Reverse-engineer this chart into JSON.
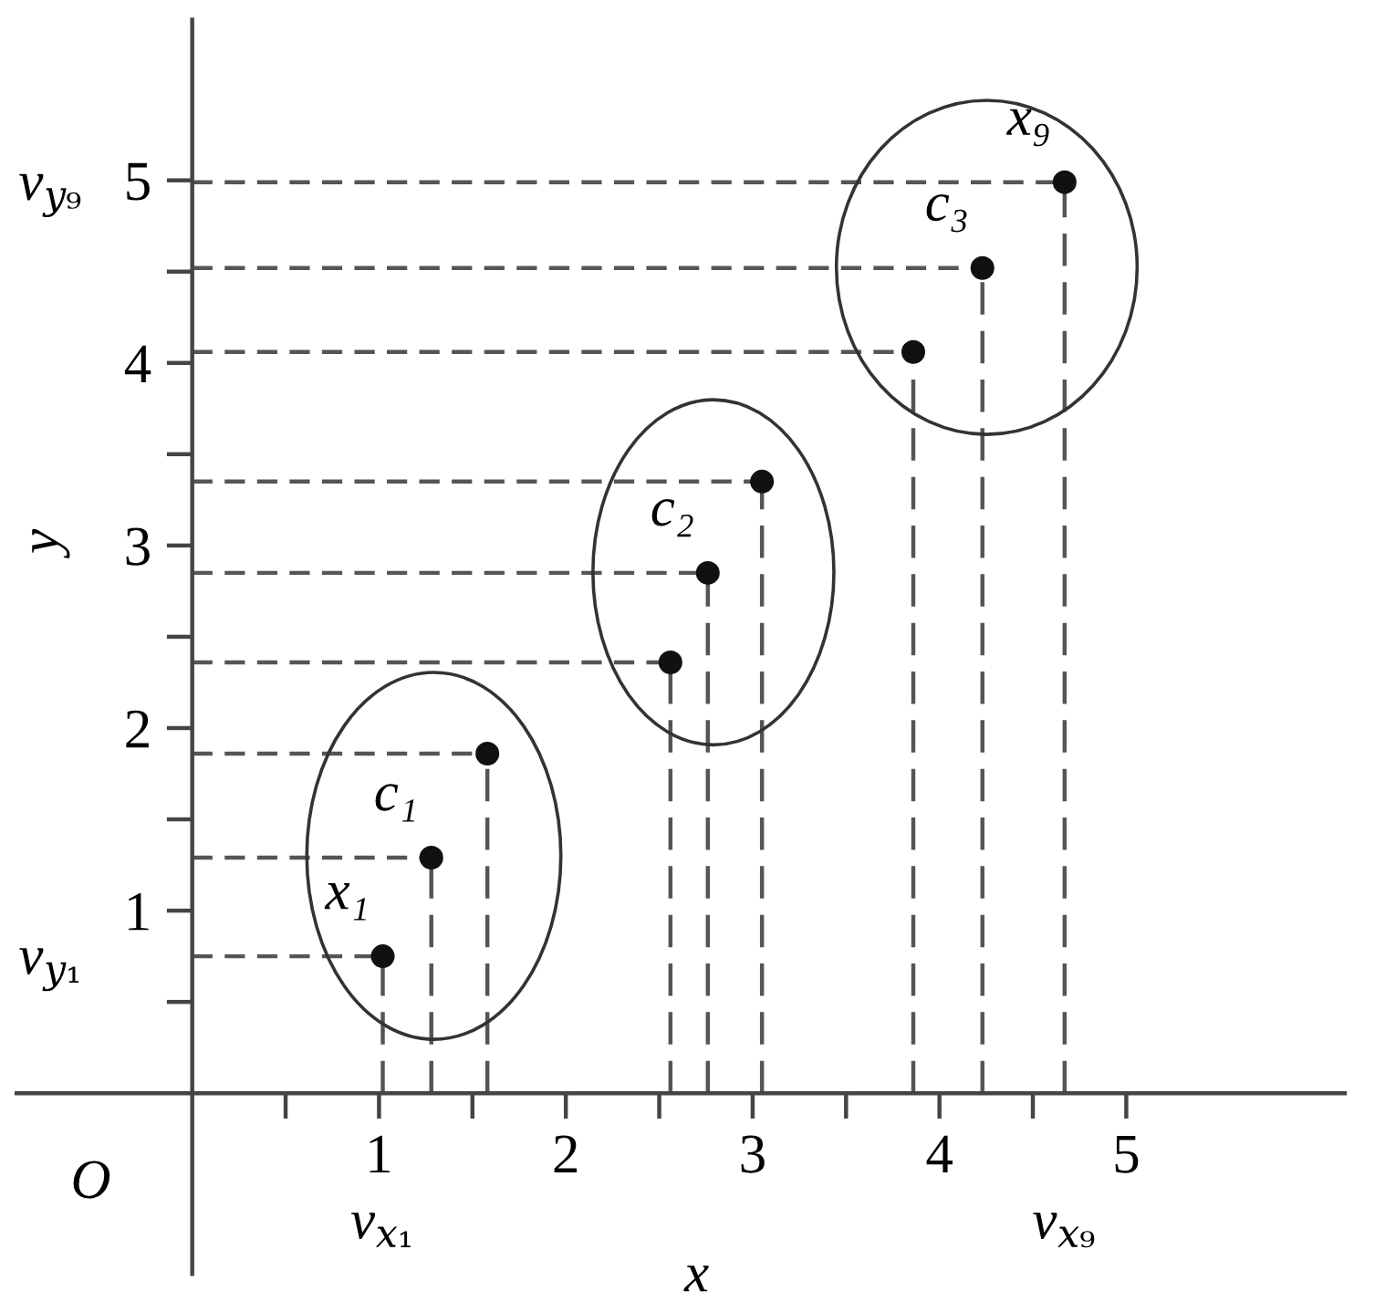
{
  "chart_data": {
    "type": "scatter",
    "xlabel": "x",
    "ylabel": "y",
    "marker": "circle",
    "series": [
      {
        "color": "#111111",
        "x": [
          1.02,
          1.28,
          1.58
        ],
        "values": [
          0.75,
          1.29,
          1.86
        ],
        "errors": [
          [
            0,
            0.75
          ],
          [
            0,
            1.29
          ],
          [
            0,
            1.86
          ]
        ],
        "xerrors": [
          [
            0,
            1.02
          ],
          [
            0,
            1.28
          ],
          [
            0,
            1.58
          ]
        ]
      },
      {
        "color": "#111111",
        "x": [
          2.56,
          2.76,
          3.05
        ],
        "values": [
          2.36,
          2.85,
          3.35
        ],
        "errors": [
          [
            0,
            2.36
          ],
          [
            0,
            2.85
          ],
          [
            0,
            3.35
          ]
        ],
        "xerrors": [
          [
            0,
            2.56
          ],
          [
            0,
            2.76
          ],
          [
            0,
            3.05
          ]
        ]
      },
      {
        "color": "#111111",
        "x": [
          3.86,
          4.23,
          4.67
        ],
        "values": [
          4.06,
          4.52,
          4.99
        ],
        "errors": [
          [
            0,
            4.06
          ],
          [
            0,
            4.52
          ],
          [
            0,
            4.99
          ]
        ],
        "xerrors": [
          [
            0,
            3.86
          ],
          [
            0,
            4.23
          ],
          [
            0,
            4.67
          ]
        ]
      }
    ],
    "xlim": [
      -0.94,
      6.17
    ],
    "ylim": [
      -0.99,
      5.88
    ],
    "xticks": [
      {
        "value": 0.5,
        "label": null
      },
      1,
      {
        "value": 1.5,
        "label": null
      },
      2,
      {
        "value": 2.5,
        "label": null
      },
      3,
      {
        "value": 3.5,
        "label": null
      },
      4,
      {
        "value": 4.5,
        "label": null
      },
      5
    ],
    "yticks": [
      {
        "value": 0.5,
        "label": null
      },
      1,
      {
        "value": 1.5,
        "label": null
      },
      2,
      {
        "value": 2.5,
        "label": null
      },
      3,
      {
        "value": 3.5,
        "label": null
      },
      4,
      {
        "value": 4.5,
        "label": null
      },
      5
    ],
    "annotations": [
      "O",
      {
        "text": "v$_{y₉}$",
        "x": 0,
        "y": 4.99
      },
      {
        "text": "v$_{y₁}$",
        "x": 0,
        "y": 0.75
      },
      {
        "text": "v$_{x₁}$",
        "x": 1.02,
        "y": 0
      },
      {
        "text": "v$_{x₉}$",
        "x": 4.67,
        "y": 0
      },
      {
        "text": "c₁",
        "x": 1.28,
        "y": 1.29
      },
      {
        "text": "c₂",
        "x": 2.76,
        "y": 2.85
      },
      {
        "text": "c₃",
        "x": 4.23,
        "y": 4.52
      },
      {
        "text": "x₁",
        "x": 1.02,
        "y": 0.75
      },
      {
        "text": "x₉",
        "x": 4.67,
        "y": 4.99
      }
    ]
  }
}
